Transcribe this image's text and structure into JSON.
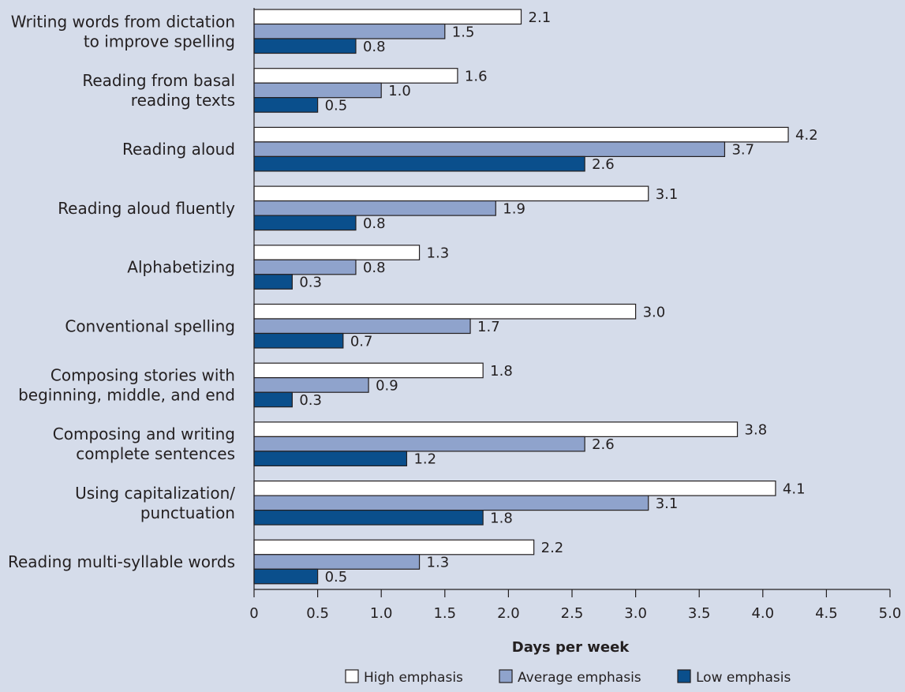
{
  "chart_data": {
    "type": "bar",
    "orientation": "horizontal",
    "categories": [
      [
        "Writing words from dictation",
        "to improve spelling"
      ],
      [
        "Reading from basal",
        "reading texts"
      ],
      [
        "Reading aloud"
      ],
      [
        "Reading aloud fluently"
      ],
      [
        "Alphabetizing"
      ],
      [
        "Conventional spelling"
      ],
      [
        "Composing stories with",
        "beginning, middle, and end"
      ],
      [
        "Composing and writing",
        "complete sentences"
      ],
      [
        "Using capitalization/",
        "punctuation"
      ],
      [
        "Reading multi-syllable words"
      ]
    ],
    "series": [
      {
        "name": "High emphasis",
        "color": "#ffffff",
        "values": [
          2.1,
          1.6,
          4.2,
          3.1,
          1.3,
          3.0,
          1.8,
          3.8,
          4.1,
          2.2
        ]
      },
      {
        "name": "Average emphasis",
        "color": "#8fa3cc",
        "values": [
          1.5,
          1.0,
          3.7,
          1.9,
          0.8,
          1.7,
          0.9,
          2.6,
          3.1,
          1.3
        ]
      },
      {
        "name": "Low emphasis",
        "color": "#0a4f8c",
        "values": [
          0.8,
          0.5,
          2.6,
          0.8,
          0.3,
          0.7,
          0.3,
          1.2,
          1.8,
          0.5
        ]
      }
    ],
    "xlabel": "Days per week",
    "xlim": [
      0,
      5
    ],
    "xticks": [
      "0",
      "0.5",
      "1.0",
      "1.5",
      "2.0",
      "2.5",
      "3.0",
      "3.5",
      "4.0",
      "4.5",
      "5.0"
    ],
    "value_labels": [
      [
        "2.1",
        "1.6",
        "4.2",
        "3.1",
        "1.3",
        "3.0",
        "1.8",
        "3.8",
        "4.1",
        "2.2"
      ],
      [
        "1.5",
        "1.0",
        "3.7",
        "1.9",
        "0.8",
        "1.7",
        "0.9",
        "2.6",
        "3.1",
        "1.3"
      ],
      [
        "0.8",
        "0.5",
        "2.6",
        "0.8",
        "0.3",
        "0.7",
        "0.3",
        "1.2",
        "1.8",
        "0.5"
      ]
    ],
    "grid": false,
    "legend_position": "bottom-right",
    "bar_border_color": "#231f20",
    "text_color": "#231f20",
    "background_color": "#d5dcea"
  }
}
